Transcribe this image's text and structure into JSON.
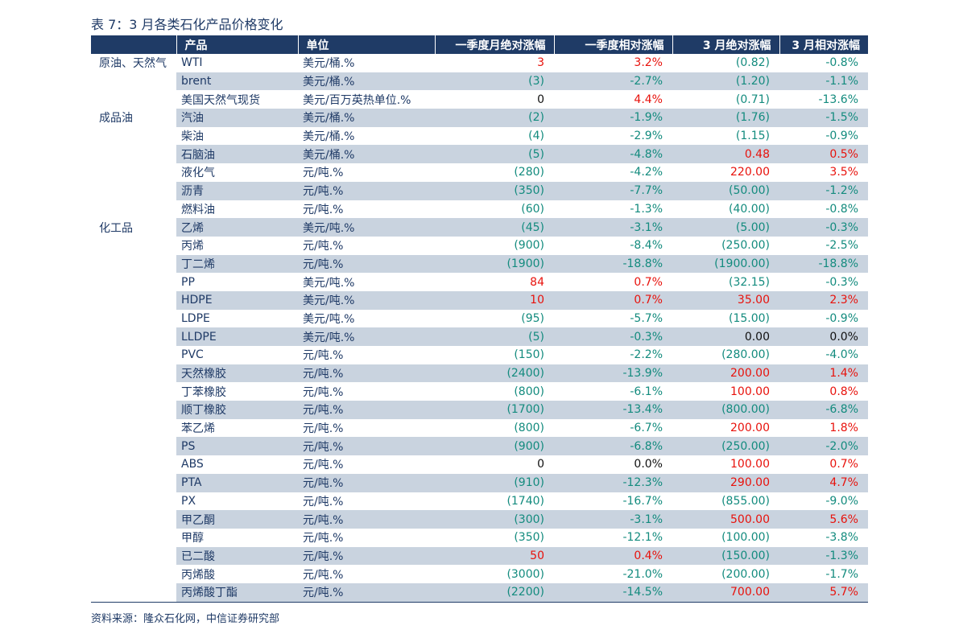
{
  "title": "表 7：3 月各类石化产品价格变化",
  "source": "资料来源：隆众石化网，中信证券研究部",
  "headers": [
    "",
    "产品",
    "单位",
    "一季度月绝对涨幅",
    "一季度相对涨幅",
    "3 月绝对涨幅",
    "3 月相对涨幅"
  ],
  "rows": [
    {
      "category": "原油、天然气",
      "product": "WTI",
      "unit": "美元/桶.%",
      "q_abs": "3",
      "q_rel": "3.2%",
      "m_abs": "(0.82)",
      "m_rel": "-0.8%"
    },
    {
      "category": "",
      "product": "brent",
      "unit": "美元/桶.%",
      "q_abs": "(3)",
      "q_rel": "-2.7%",
      "m_abs": "(1.20)",
      "m_rel": "-1.1%"
    },
    {
      "category": "",
      "product": "美国天然气现货",
      "unit": "美元/百万英热单位.%",
      "q_abs": "0",
      "q_rel": "4.4%",
      "m_abs": "(0.71)",
      "m_rel": "-13.6%"
    },
    {
      "category": "成品油",
      "product": "汽油",
      "unit": "美元/桶.%",
      "q_abs": "(2)",
      "q_rel": "-1.9%",
      "m_abs": "(1.76)",
      "m_rel": "-1.5%"
    },
    {
      "category": "",
      "product": "柴油",
      "unit": "美元/桶.%",
      "q_abs": "(4)",
      "q_rel": "-2.9%",
      "m_abs": "(1.15)",
      "m_rel": "-0.9%"
    },
    {
      "category": "",
      "product": "石脑油",
      "unit": "美元/桶.%",
      "q_abs": "(5)",
      "q_rel": "-4.8%",
      "m_abs": "0.48",
      "m_rel": "0.5%"
    },
    {
      "category": "",
      "product": "液化气",
      "unit": "元/吨.%",
      "q_abs": "(280)",
      "q_rel": "-4.2%",
      "m_abs": "220.00",
      "m_rel": "3.5%"
    },
    {
      "category": "",
      "product": "沥青",
      "unit": "元/吨.%",
      "q_abs": "(350)",
      "q_rel": "-7.7%",
      "m_abs": "(50.00)",
      "m_rel": "-1.2%"
    },
    {
      "category": "",
      "product": "燃料油",
      "unit": "元/吨.%",
      "q_abs": "(60)",
      "q_rel": "-1.3%",
      "m_abs": "(40.00)",
      "m_rel": "-0.8%"
    },
    {
      "category": "化工品",
      "product": "乙烯",
      "unit": "美元/吨.%",
      "q_abs": "(45)",
      "q_rel": "-3.1%",
      "m_abs": "(5.00)",
      "m_rel": "-0.3%"
    },
    {
      "category": "",
      "product": "丙烯",
      "unit": "元/吨.%",
      "q_abs": "(900)",
      "q_rel": "-8.4%",
      "m_abs": "(250.00)",
      "m_rel": "-2.5%"
    },
    {
      "category": "",
      "product": "丁二烯",
      "unit": "元/吨.%",
      "q_abs": "(1900)",
      "q_rel": "-18.8%",
      "m_abs": "(1900.00)",
      "m_rel": "-18.8%"
    },
    {
      "category": "",
      "product": "PP",
      "unit": "美元/吨.%",
      "q_abs": "84",
      "q_rel": "0.7%",
      "m_abs": "(32.15)",
      "m_rel": "-0.3%"
    },
    {
      "category": "",
      "product": "HDPE",
      "unit": "美元/吨.%",
      "q_abs": "10",
      "q_rel": "0.7%",
      "m_abs": "35.00",
      "m_rel": "2.3%"
    },
    {
      "category": "",
      "product": "LDPE",
      "unit": "美元/吨.%",
      "q_abs": "(95)",
      "q_rel": "-5.7%",
      "m_abs": "(15.00)",
      "m_rel": "-0.9%"
    },
    {
      "category": "",
      "product": "LLDPE",
      "unit": "美元/吨.%",
      "q_abs": "(5)",
      "q_rel": "-0.3%",
      "m_abs": "0.00",
      "m_rel": "0.0%"
    },
    {
      "category": "",
      "product": "PVC",
      "unit": "元/吨.%",
      "q_abs": "(150)",
      "q_rel": "-2.2%",
      "m_abs": "(280.00)",
      "m_rel": "-4.0%"
    },
    {
      "category": "",
      "product": "天然橡胶",
      "unit": "元/吨.%",
      "q_abs": "(2400)",
      "q_rel": "-13.9%",
      "m_abs": "200.00",
      "m_rel": "1.4%"
    },
    {
      "category": "",
      "product": "丁苯橡胶",
      "unit": "元/吨.%",
      "q_abs": "(800)",
      "q_rel": "-6.1%",
      "m_abs": "100.00",
      "m_rel": "0.8%"
    },
    {
      "category": "",
      "product": "顺丁橡胶",
      "unit": "元/吨.%",
      "q_abs": "(1700)",
      "q_rel": "-13.4%",
      "m_abs": "(800.00)",
      "m_rel": "-6.8%"
    },
    {
      "category": "",
      "product": "苯乙烯",
      "unit": "元/吨.%",
      "q_abs": "(800)",
      "q_rel": "-6.7%",
      "m_abs": "200.00",
      "m_rel": "1.8%"
    },
    {
      "category": "",
      "product": "PS",
      "unit": "元/吨.%",
      "q_abs": "(900)",
      "q_rel": "-6.8%",
      "m_abs": "(250.00)",
      "m_rel": "-2.0%"
    },
    {
      "category": "",
      "product": "ABS",
      "unit": "元/吨.%",
      "q_abs": "0",
      "q_rel": "0.0%",
      "m_abs": "100.00",
      "m_rel": "0.7%"
    },
    {
      "category": "",
      "product": "PTA",
      "unit": "元/吨.%",
      "q_abs": "(910)",
      "q_rel": "-12.3%",
      "m_abs": "290.00",
      "m_rel": "4.7%"
    },
    {
      "category": "",
      "product": "PX",
      "unit": "元/吨.%",
      "q_abs": "(1740)",
      "q_rel": "-16.7%",
      "m_abs": "(855.00)",
      "m_rel": "-9.0%"
    },
    {
      "category": "",
      "product": "甲乙酮",
      "unit": "元/吨.%",
      "q_abs": "(300)",
      "q_rel": "-3.1%",
      "m_abs": "500.00",
      "m_rel": "5.6%"
    },
    {
      "category": "",
      "product": "甲醇",
      "unit": "元/吨.%",
      "q_abs": "(350)",
      "q_rel": "-12.1%",
      "m_abs": "(100.00)",
      "m_rel": "-3.8%"
    },
    {
      "category": "",
      "product": "已二酸",
      "unit": "元/吨.%",
      "q_abs": "50",
      "q_rel": "0.4%",
      "m_abs": "(150.00)",
      "m_rel": "-1.3%"
    },
    {
      "category": "",
      "product": "丙烯酸",
      "unit": "元/吨.%",
      "q_abs": "(3000)",
      "q_rel": "-21.0%",
      "m_abs": "(200.00)",
      "m_rel": "-1.7%"
    },
    {
      "category": "",
      "product": "丙烯酸丁酯",
      "unit": "元/吨.%",
      "q_abs": "(2200)",
      "q_rel": "-14.5%",
      "m_abs": "700.00",
      "m_rel": "5.7%"
    }
  ],
  "colors": {
    "header_bg": "#1f3b66",
    "row_shade": "#c9d3df",
    "negative": "#138b7e",
    "positive": "#e8120c",
    "zero": "#111111"
  }
}
